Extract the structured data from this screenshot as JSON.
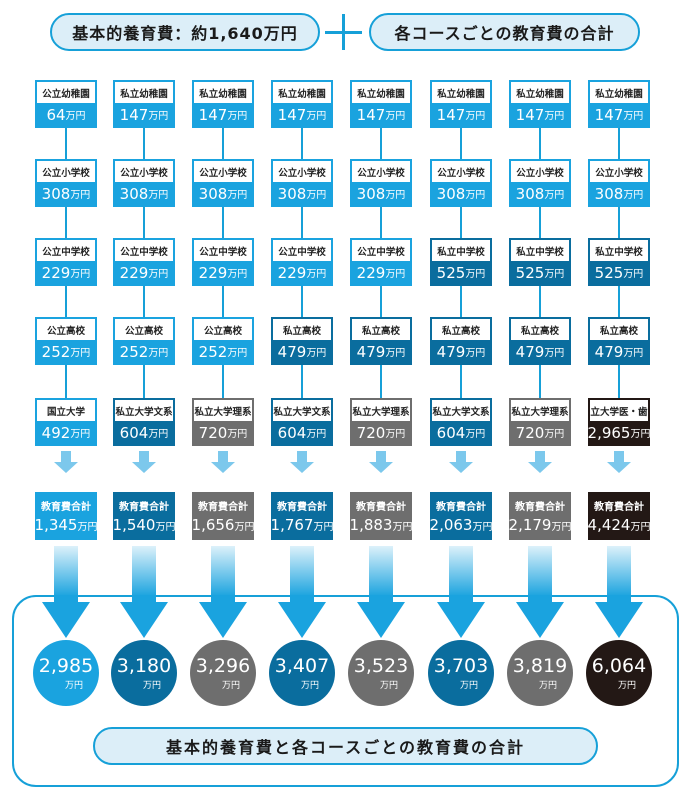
{
  "header": {
    "left_title": "基本的養育費：約1,640万円",
    "right_title": "各コースごとの教育費の合計"
  },
  "footer_title": "基本的養育費と各コースごとの教育費の合計",
  "unit": "万円",
  "total_label": "教育費合計",
  "colors": {
    "public": "#1aa3df",
    "private": "#0a6d9e",
    "science": "#6e6e6e",
    "medical": "#231815",
    "accent": "#16a0d8",
    "pill_bg": "#dceef8"
  },
  "courses": [
    {
      "stages": [
        {
          "label": "公立幼稚園",
          "value": "64",
          "kind": "public"
        },
        {
          "label": "公立小学校",
          "value": "308",
          "kind": "public"
        },
        {
          "label": "公立中学校",
          "value": "229",
          "kind": "public"
        },
        {
          "label": "公立高校",
          "value": "252",
          "kind": "public"
        },
        {
          "label": "国立大学",
          "value": "492",
          "kind": "public"
        }
      ],
      "edu_total": "1,345",
      "grand_total": "2,985",
      "kind": "public"
    },
    {
      "stages": [
        {
          "label": "私立幼稚園",
          "value": "147",
          "kind": "public"
        },
        {
          "label": "公立小学校",
          "value": "308",
          "kind": "public"
        },
        {
          "label": "公立中学校",
          "value": "229",
          "kind": "public"
        },
        {
          "label": "公立高校",
          "value": "252",
          "kind": "public"
        },
        {
          "label": "私立大学文系",
          "value": "604",
          "kind": "private"
        }
      ],
      "edu_total": "1,540",
      "grand_total": "3,180",
      "kind": "private"
    },
    {
      "stages": [
        {
          "label": "私立幼稚園",
          "value": "147",
          "kind": "public"
        },
        {
          "label": "公立小学校",
          "value": "308",
          "kind": "public"
        },
        {
          "label": "公立中学校",
          "value": "229",
          "kind": "public"
        },
        {
          "label": "公立高校",
          "value": "252",
          "kind": "public"
        },
        {
          "label": "私立大学理系",
          "value": "720",
          "kind": "science"
        }
      ],
      "edu_total": "1,656",
      "grand_total": "3,296",
      "kind": "science"
    },
    {
      "stages": [
        {
          "label": "私立幼稚園",
          "value": "147",
          "kind": "public"
        },
        {
          "label": "公立小学校",
          "value": "308",
          "kind": "public"
        },
        {
          "label": "公立中学校",
          "value": "229",
          "kind": "public"
        },
        {
          "label": "私立高校",
          "value": "479",
          "kind": "private"
        },
        {
          "label": "私立大学文系",
          "value": "604",
          "kind": "private"
        }
      ],
      "edu_total": "1,767",
      "grand_total": "3,407",
      "kind": "private"
    },
    {
      "stages": [
        {
          "label": "私立幼稚園",
          "value": "147",
          "kind": "public"
        },
        {
          "label": "公立小学校",
          "value": "308",
          "kind": "public"
        },
        {
          "label": "公立中学校",
          "value": "229",
          "kind": "public"
        },
        {
          "label": "私立高校",
          "value": "479",
          "kind": "private"
        },
        {
          "label": "私立大学理系",
          "value": "720",
          "kind": "science"
        }
      ],
      "edu_total": "1,883",
      "grand_total": "3,523",
      "kind": "science"
    },
    {
      "stages": [
        {
          "label": "私立幼稚園",
          "value": "147",
          "kind": "public"
        },
        {
          "label": "公立小学校",
          "value": "308",
          "kind": "public"
        },
        {
          "label": "私立中学校",
          "value": "525",
          "kind": "private"
        },
        {
          "label": "私立高校",
          "value": "479",
          "kind": "private"
        },
        {
          "label": "私立大学文系",
          "value": "604",
          "kind": "private"
        }
      ],
      "edu_total": "2,063",
      "grand_total": "3,703",
      "kind": "private"
    },
    {
      "stages": [
        {
          "label": "私立幼稚園",
          "value": "147",
          "kind": "public"
        },
        {
          "label": "公立小学校",
          "value": "308",
          "kind": "public"
        },
        {
          "label": "私立中学校",
          "value": "525",
          "kind": "private"
        },
        {
          "label": "私立高校",
          "value": "479",
          "kind": "private"
        },
        {
          "label": "私立大学理系",
          "value": "720",
          "kind": "science"
        }
      ],
      "edu_total": "2,179",
      "grand_total": "3,819",
      "kind": "science"
    },
    {
      "stages": [
        {
          "label": "私立幼稚園",
          "value": "147",
          "kind": "public"
        },
        {
          "label": "公立小学校",
          "value": "308",
          "kind": "public"
        },
        {
          "label": "私立中学校",
          "value": "525",
          "kind": "private"
        },
        {
          "label": "私立高校",
          "value": "479",
          "kind": "private"
        },
        {
          "label": "私立大学医・歯系",
          "value": "2,965",
          "kind": "medical"
        }
      ],
      "edu_total": "4,424",
      "grand_total": "6,064",
      "kind": "medical"
    }
  ]
}
